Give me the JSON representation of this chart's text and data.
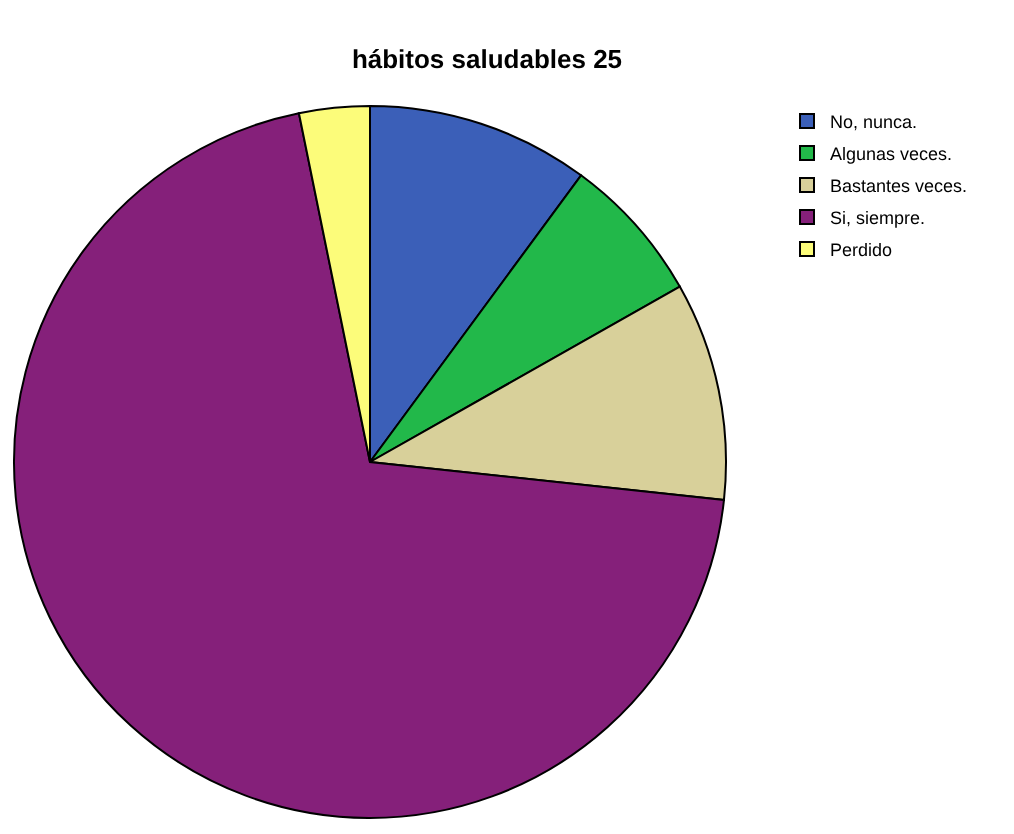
{
  "chart_data": {
    "type": "pie",
    "title": "hábitos saludables 25",
    "categories": [
      "No, nunca.",
      "Algunas veces.",
      "Bastantes veces.",
      "Si, siempre.",
      "Perdido"
    ],
    "values": [
      10.1,
      6.7,
      9.9,
      70.1,
      3.2
    ],
    "colors": [
      "#3b5fb8",
      "#22b84a",
      "#d8d09a",
      "#85207a",
      "#fcfc7a"
    ],
    "legend": "top right"
  }
}
